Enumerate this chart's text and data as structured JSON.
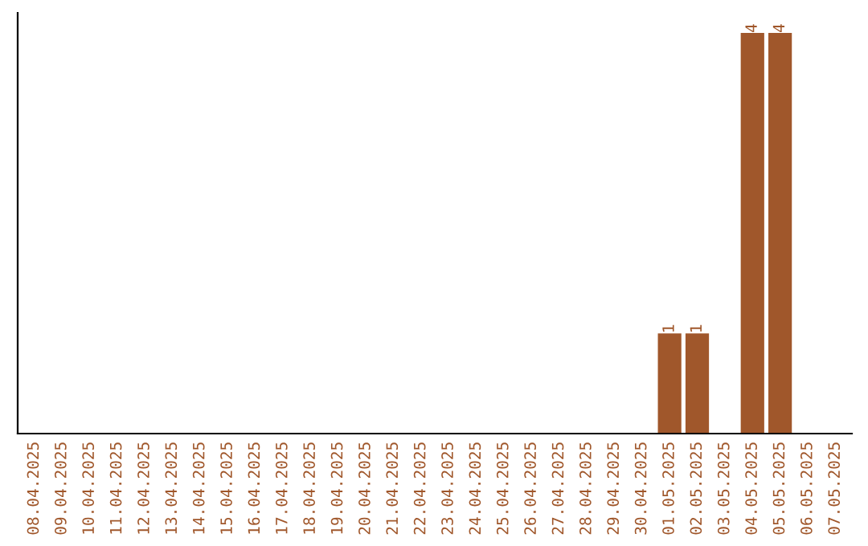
{
  "chart_data": {
    "type": "bar",
    "categories": [
      "08.04.2025",
      "09.04.2025",
      "10.04.2025",
      "11.04.2025",
      "12.04.2025",
      "13.04.2025",
      "14.04.2025",
      "15.04.2025",
      "16.04.2025",
      "17.04.2025",
      "18.04.2025",
      "19.04.2025",
      "20.04.2025",
      "21.04.2025",
      "22.04.2025",
      "23.04.2025",
      "24.04.2025",
      "25.04.2025",
      "26.04.2025",
      "27.04.2025",
      "28.04.2025",
      "29.04.2025",
      "30.04.2025",
      "01.05.2025",
      "02.05.2025",
      "03.05.2025",
      "04.05.2025",
      "05.05.2025",
      "06.05.2025",
      "07.05.2025"
    ],
    "values": [
      null,
      null,
      null,
      null,
      null,
      null,
      null,
      null,
      null,
      null,
      null,
      null,
      null,
      null,
      null,
      null,
      null,
      null,
      null,
      null,
      null,
      null,
      null,
      1,
      1,
      null,
      4,
      4,
      null,
      null
    ],
    "value_labels": [
      null,
      null,
      null,
      null,
      null,
      null,
      null,
      null,
      null,
      null,
      null,
      null,
      null,
      null,
      null,
      null,
      null,
      null,
      null,
      null,
      null,
      null,
      null,
      "1",
      "1",
      null,
      "4",
      "4",
      null,
      null
    ],
    "color": "#a0572b",
    "tick_labels": "x",
    "grid": false,
    "legend": false
  }
}
